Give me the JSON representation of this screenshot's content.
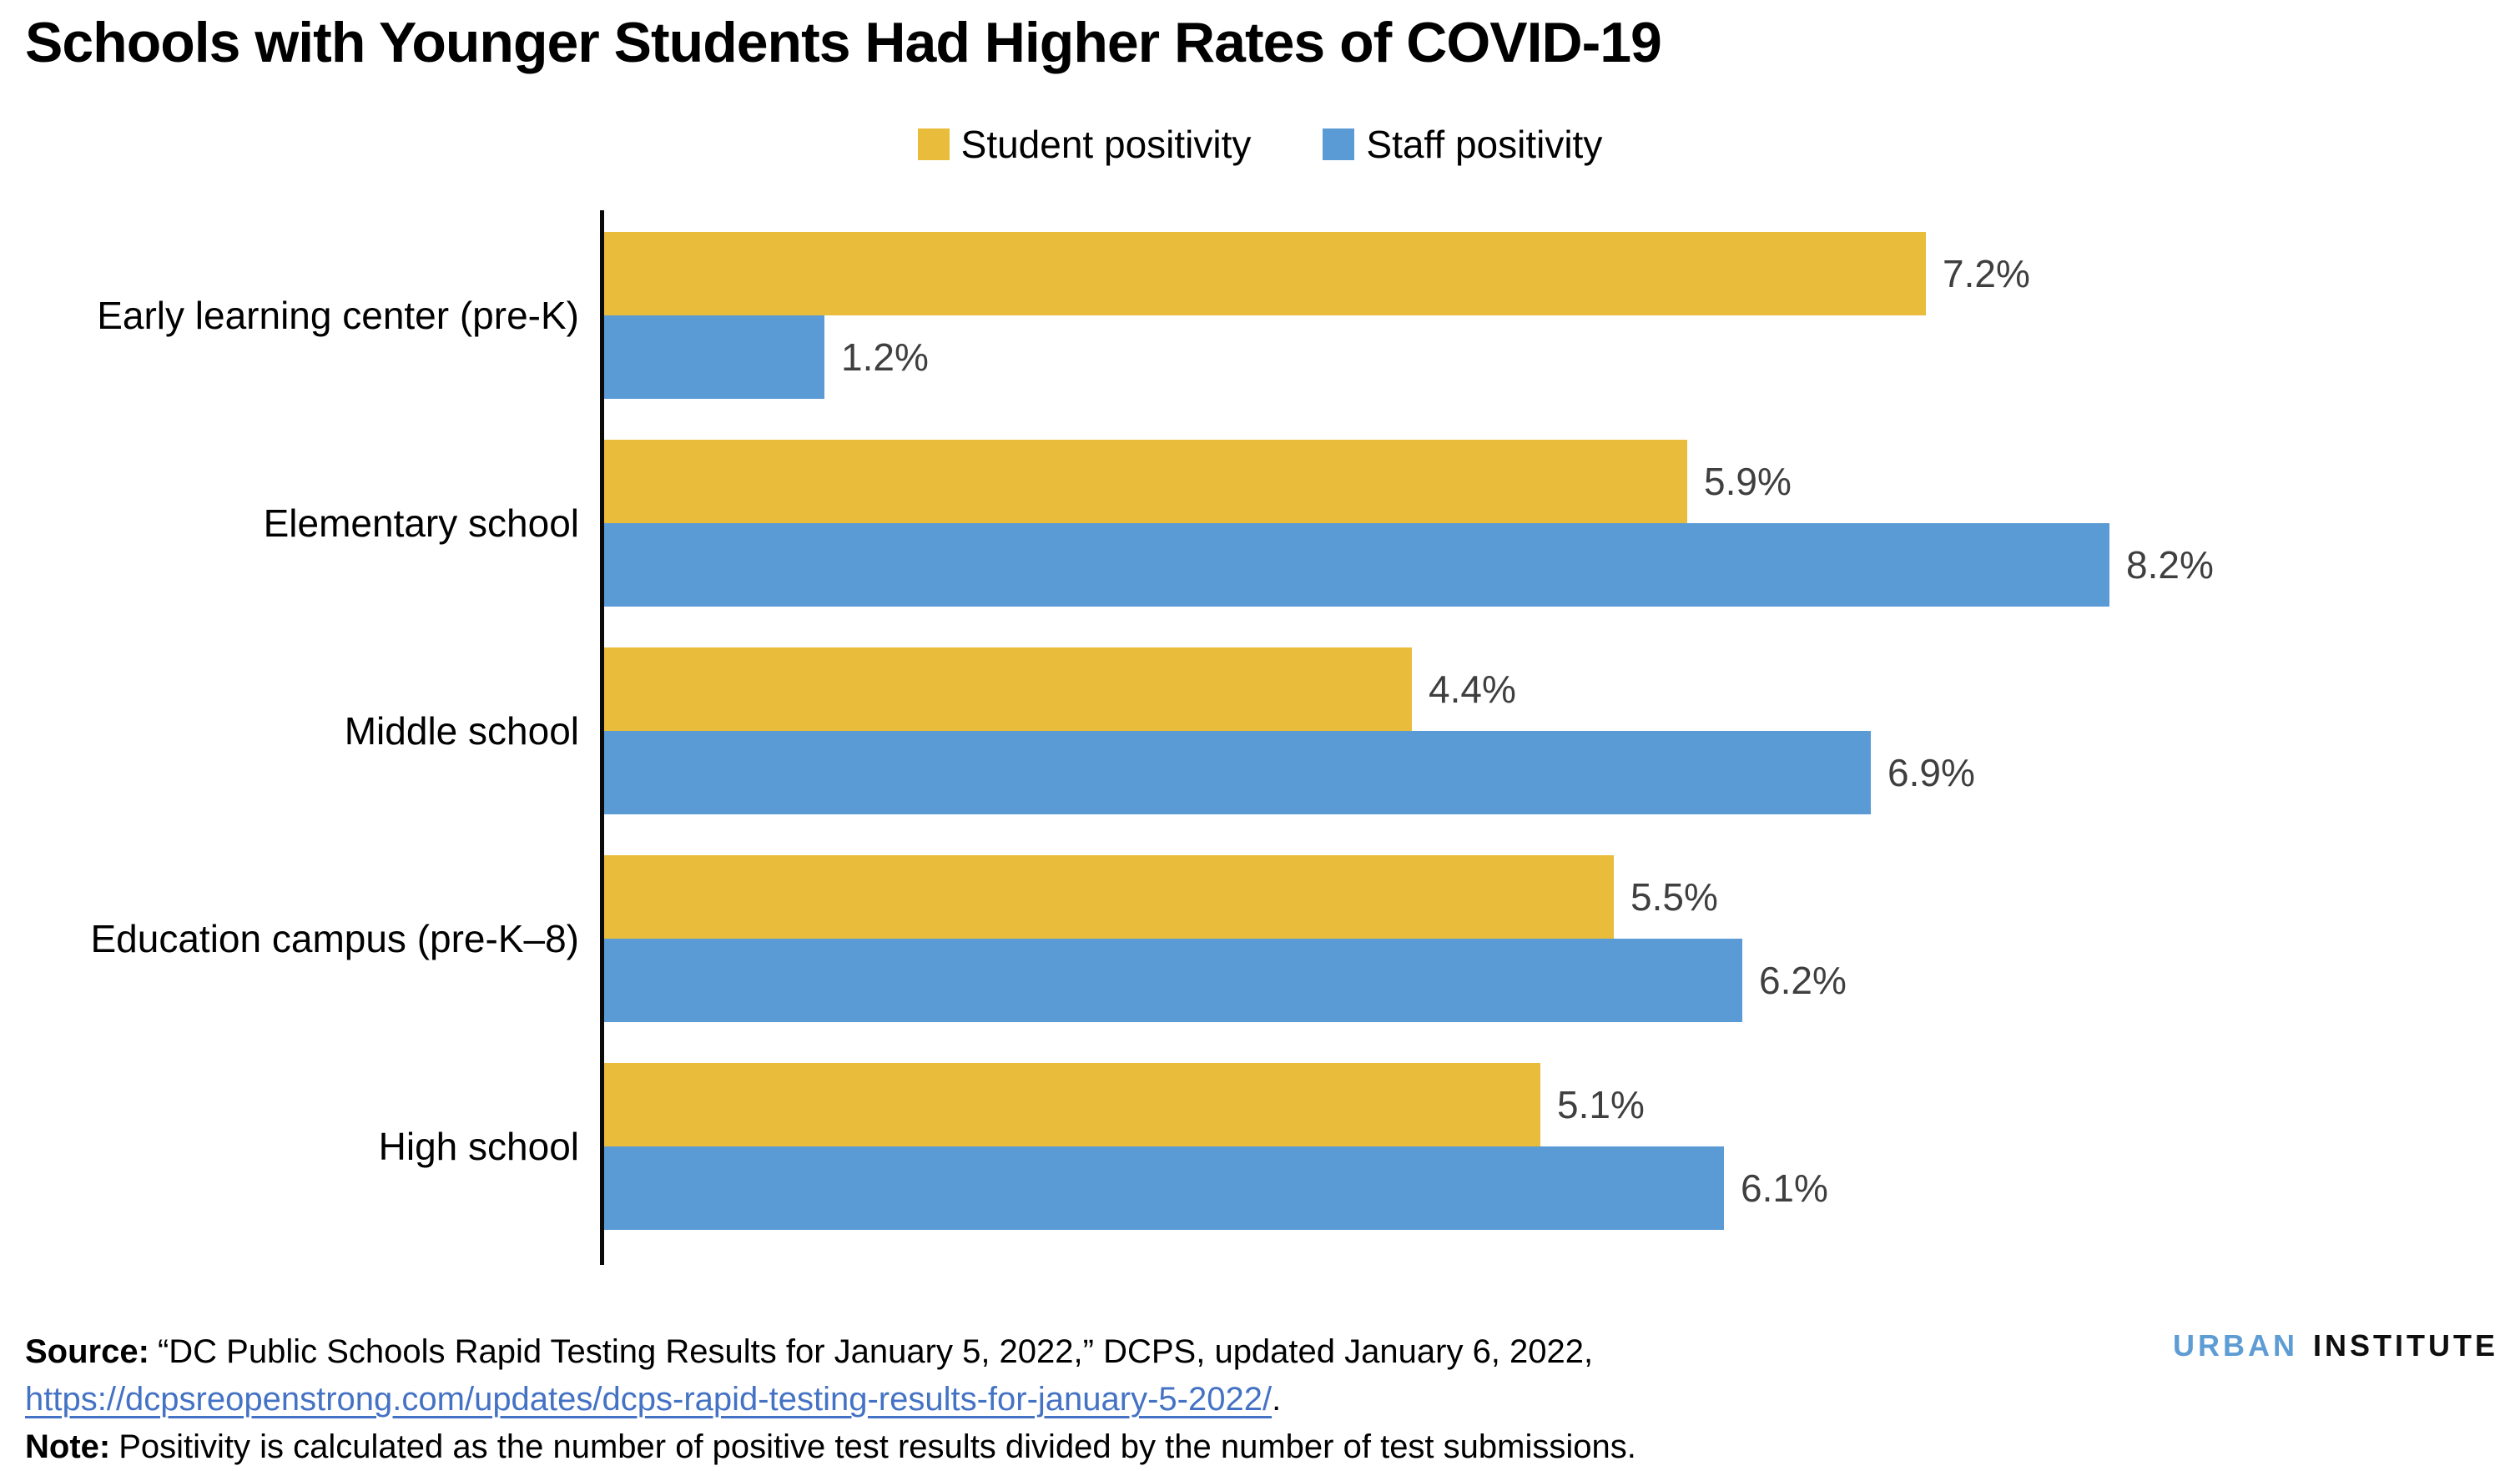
{
  "title": "Schools with Younger Students Had Higher Rates of COVID-19",
  "chart_data": {
    "type": "bar",
    "orientation": "horizontal",
    "title": "Schools with Younger Students Had Higher Rates of COVID-19",
    "categories": [
      "Early learning center (pre-K)",
      "Elementary school",
      "Middle school",
      "Education campus (pre-K–8)",
      "High school"
    ],
    "series": [
      {
        "name": "Student positivity",
        "color": "#E9BC3B",
        "values": [
          7.2,
          5.9,
          4.4,
          5.5,
          5.1
        ],
        "labels": [
          "7.2%",
          "5.9%",
          "4.4%",
          "5.5%",
          "5.1%"
        ]
      },
      {
        "name": "Staff positivity",
        "color": "#5B9BD5",
        "values": [
          1.2,
          8.2,
          6.9,
          6.2,
          6.1
        ],
        "labels": [
          "1.2%",
          "8.2%",
          "6.9%",
          "6.2%",
          "6.1%"
        ]
      }
    ],
    "xlim": [
      0,
      10.3
    ],
    "grid": false,
    "legend_position": "top-center",
    "data_label_color": "#3F3F3F",
    "axis_color": "#0A0A0A",
    "value_suffix": "%"
  },
  "footer": {
    "source_label": "Source:",
    "source_text": "“DC Public Schools Rapid Testing Results for January 5, 2022,” DCPS,  updated January 6, 2022,",
    "source_link": "https://dcpsreopenstrong.com/updates/dcps-rapid-testing-results-for-january-5-2022/",
    "source_link_suffix": ".",
    "source_link_color": "#4472C4",
    "note_label": "Note:",
    "note_text": "Positivity is calculated as the number of positive test results divided by the number of test submissions."
  },
  "logo": {
    "word1": "URBAN",
    "word2": "INSTITUTE",
    "word1_color": "#5E9CD4",
    "word2_color": "#0F0F0F"
  }
}
